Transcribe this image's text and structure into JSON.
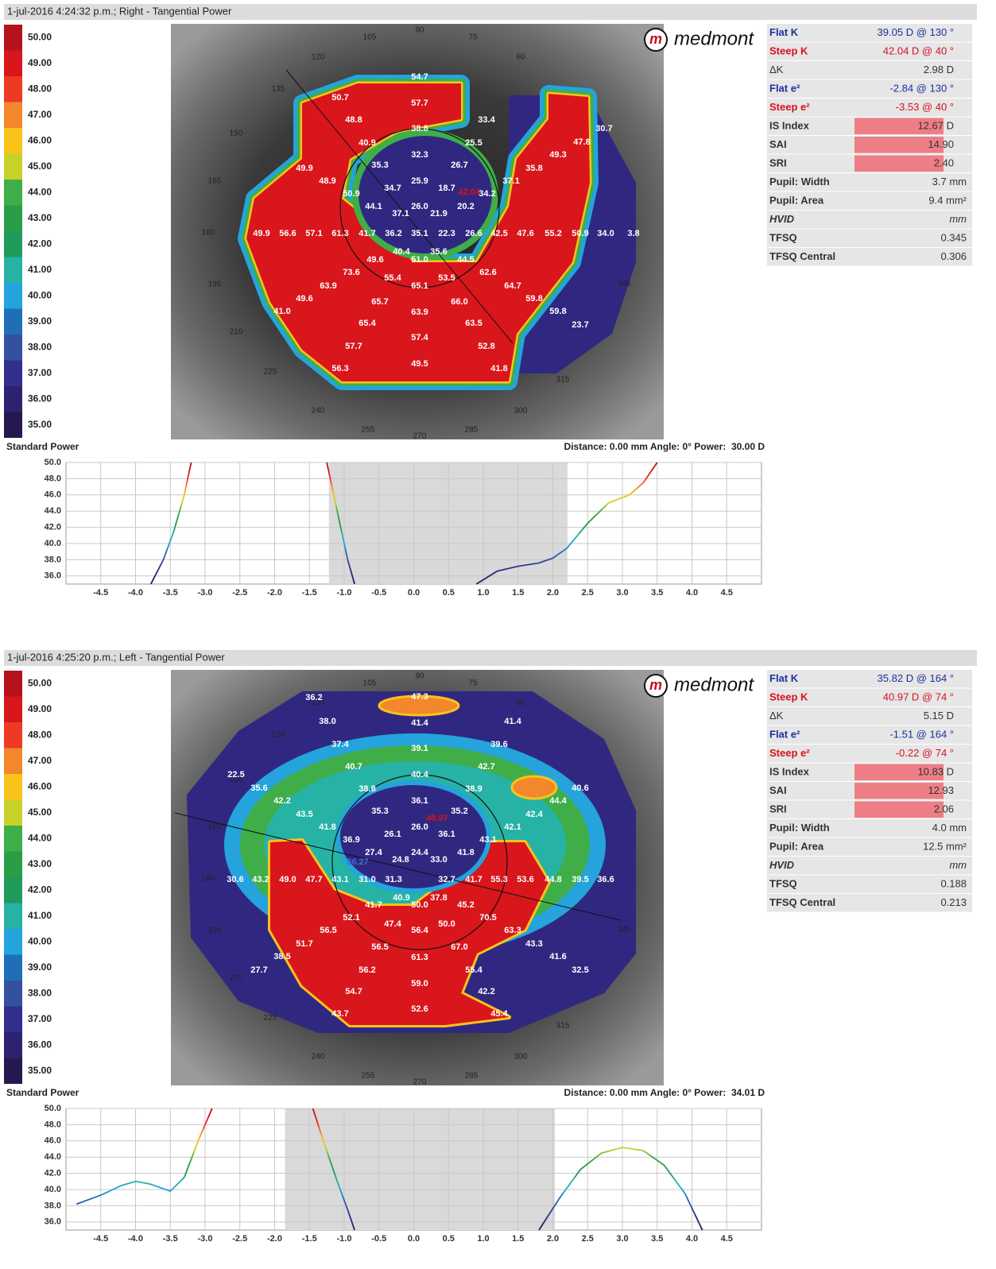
{
  "panels": [
    {
      "header": "1-jul-2016 4:24:32 p.m.; Right - Tangential Power",
      "scale_labels": [
        "50.00",
        "49.00",
        "48.00",
        "47.00",
        "46.00",
        "45.00",
        "44.00",
        "43.00",
        "42.00",
        "41.00",
        "40.00",
        "39.00",
        "38.00",
        "37.00",
        "36.00",
        "35.00"
      ],
      "logo": {
        "mark": "m",
        "text": "medmont"
      },
      "angle_labels": [
        "105",
        "90",
        "75",
        "120",
        "60",
        "135",
        "150",
        "165",
        "180",
        "195",
        "210",
        "225",
        "240",
        "255",
        "270",
        "285",
        "300",
        "315",
        "345"
      ],
      "map_values": [
        "54.7",
        "50.7",
        "57.7",
        "48.8",
        "33.4",
        "38.8",
        "30.7",
        "40.9",
        "25.5",
        "47.8",
        "49.3",
        "32.3",
        "35.3",
        "26.7",
        "35.8",
        "49.9",
        "48.9",
        "25.9",
        "37.1",
        "34.7",
        "18.7",
        "42.04",
        "34.2",
        "50.9",
        "44.1",
        "26.0",
        "20.2",
        "37.1",
        "21.9",
        "49.9",
        "56.6",
        "57.1",
        "61.3",
        "41.7",
        "36.2",
        "35.1",
        "22.3",
        "26.6",
        "42.5",
        "47.6",
        "55.2",
        "50.9",
        "34.0",
        "3.8",
        "40.4",
        "35.6",
        "49.6",
        "51.0",
        "44.5",
        "73.6",
        "62.6",
        "55.4",
        "53.5",
        "63.9",
        "65.1",
        "64.7",
        "49.6",
        "59.8",
        "65.7",
        "66.0",
        "41.0",
        "63.9",
        "59.8",
        "65.4",
        "63.5",
        "23.7",
        "57.4",
        "57.7",
        "52.8",
        "49.5",
        "56.3",
        "41.8"
      ],
      "stats": [
        {
          "label": "Flat K",
          "value": "39.05 D @ 130 °"
        },
        {
          "label": "Steep K",
          "value": "42.04 D @  40 °"
        },
        {
          "label": "ΔK",
          "value": "2.98 D"
        },
        {
          "label": "Flat e²",
          "value": "-2.84 @ 130 °"
        },
        {
          "label": "Steep e²",
          "value": "-3.53 @  40 °"
        },
        {
          "label": "IS Index",
          "value": "12.67 D"
        },
        {
          "label": "SAI",
          "value": "14.90"
        },
        {
          "label": "SRI",
          "value": "2.40"
        },
        {
          "label": "Pupil: Width",
          "value": "3.7 mm"
        },
        {
          "label": "Pupil: Area",
          "value": "9.4 mm²"
        },
        {
          "label": "HVID",
          "value": "mm"
        },
        {
          "label": "TFSQ",
          "value": "0.345"
        },
        {
          "label": "TFSQ Central",
          "value": "0.306"
        }
      ],
      "profile_title": "Standard Power",
      "profile_info": "Distance: 0.00 mm Angle: 0° Power:  30.00 D",
      "profile": {
        "xlim": [
          -5,
          5
        ],
        "ylim": [
          35,
          50
        ],
        "xticks": [
          -4.5,
          {
            "value": -4,
            "label": "-4.0"
          },
          -3.5,
          {
            "value": -3,
            "label": "-3.0"
          },
          -2.5,
          {
            "value": -2,
            "label": "-2.0"
          },
          -1.5,
          {
            "value": -1,
            "label": "-1.0"
          },
          -0.5,
          {
            "value": 0,
            "label": "0.0"
          },
          0.5,
          {
            "value": 1,
            "label": "1.0"
          },
          1.5,
          {
            "value": 2,
            "label": "2.0"
          },
          2.5,
          {
            "value": 3,
            "label": "3.0"
          },
          3.5,
          {
            "value": 4,
            "label": "4.0"
          },
          4.5
        ],
        "yticks": [
          {
            "value": 50,
            "label": "50.0"
          },
          {
            "value": 48,
            "label": "48.0"
          },
          {
            "value": 46,
            "label": "46.0"
          },
          {
            "value": 44,
            "label": "44.0"
          },
          {
            "value": 42,
            "label": "42.0"
          },
          {
            "value": 40,
            "label": "40.0"
          },
          {
            "value": 38,
            "label": "38.0"
          },
          {
            "value": 36,
            "label": "36.0"
          }
        ],
        "shade": [
          -1.22,
          2.21
        ],
        "x": [
          -3.78,
          -3.6,
          -3.45,
          -3.3,
          -3.2,
          null,
          -1.25,
          -1.15,
          -1.05,
          -0.95,
          -0.85,
          null,
          0.9,
          1.2,
          1.5,
          1.8,
          2.0,
          2.2,
          2.5,
          2.8,
          3.1,
          3.3,
          3.5
        ],
        "y": [
          35,
          38,
          41.5,
          46,
          50,
          null,
          50,
          46,
          42,
          38,
          35,
          null,
          35,
          36.6,
          37.2,
          37.6,
          38.2,
          39.4,
          42.5,
          45,
          46,
          47.5,
          50
        ]
      }
    },
    {
      "header": "1-jul-2016 4:25:20 p.m.; Left - Tangential Power",
      "scale_labels": [
        "50.00",
        "49.00",
        "48.00",
        "47.00",
        "46.00",
        "45.00",
        "44.00",
        "43.00",
        "42.00",
        "41.00",
        "40.00",
        "39.00",
        "38.00",
        "37.00",
        "36.00",
        "35.00"
      ],
      "logo": {
        "mark": "m",
        "text": "medmont"
      },
      "angle_labels": [
        "105",
        "90",
        "75",
        "120",
        "60",
        "135",
        "150",
        "165",
        "180",
        "195",
        "210",
        "225",
        "240",
        "255",
        "270",
        "285",
        "300",
        "315",
        "345"
      ],
      "map_values": [
        "36.2",
        "47.3",
        "38.0",
        "41.4",
        "41.4",
        "37.4",
        "39.6",
        "39.1",
        "40.7",
        "42.7",
        "40.4",
        "22.5",
        "35.6",
        "38.8",
        "38.9",
        "40.6",
        "42.2",
        "36.1",
        "44.4",
        "35.3",
        "35.2",
        "43.5",
        "42.4",
        "40.97",
        "41.8",
        "26.0",
        "42.1",
        "26.1",
        "36.1",
        "36.9",
        "43.1",
        "27.4",
        "24.4",
        "41.8",
        "24.8",
        "33.0",
        "36.27",
        "30.6",
        "43.2",
        "49.0",
        "47.7",
        "43.1",
        "31.0",
        "31.3",
        "32.7",
        "41.7",
        "55.3",
        "53.6",
        "44.8",
        "39.5",
        "36.6",
        "40.9",
        "37.8",
        "41.7",
        "50.0",
        "45.2",
        "52.1",
        "70.5",
        "47.4",
        "50.0",
        "56.5",
        "56.4",
        "63.3",
        "51.7",
        "43.3",
        "56.5",
        "67.0",
        "38.5",
        "41.6",
        "61.3",
        "27.7",
        "56.2",
        "55.4",
        "32.5",
        "59.0",
        "54.7",
        "42.2",
        "52.6",
        "43.7",
        "45.4"
      ],
      "stats": [
        {
          "label": "Flat K",
          "value": "35.82 D @ 164 °"
        },
        {
          "label": "Steep K",
          "value": "40.97 D @  74 °"
        },
        {
          "label": "ΔK",
          "value": "5.15 D"
        },
        {
          "label": "Flat e²",
          "value": "-1.51 @ 164 °"
        },
        {
          "label": "Steep e²",
          "value": "-0.22 @  74 °"
        },
        {
          "label": "IS Index",
          "value": "10.83 D"
        },
        {
          "label": "SAI",
          "value": "12.93"
        },
        {
          "label": "SRI",
          "value": "2.06"
        },
        {
          "label": "Pupil: Width",
          "value": "4.0 mm"
        },
        {
          "label": "Pupil: Area",
          "value": "12.5 mm²"
        },
        {
          "label": "HVID",
          "value": "mm"
        },
        {
          "label": "TFSQ",
          "value": "0.188"
        },
        {
          "label": "TFSQ Central",
          "value": "0.213"
        }
      ],
      "profile_title": "Standard Power",
      "profile_info": "Distance: 0.00 mm Angle: 0° Power:  34.01 D",
      "profile": {
        "xlim": [
          -5,
          5
        ],
        "ylim": [
          35,
          50
        ],
        "xticks": [
          -4.5,
          {
            "value": -4,
            "label": "-4.0"
          },
          -3.5,
          {
            "value": -3,
            "label": "-3.0"
          },
          -2.5,
          {
            "value": -2,
            "label": "-2.0"
          },
          -1.5,
          {
            "value": -1,
            "label": "-1.0"
          },
          -0.5,
          {
            "value": 0,
            "label": "0.0"
          },
          0.5,
          {
            "value": 1,
            "label": "1.0"
          },
          1.5,
          {
            "value": 2,
            "label": "2.0"
          },
          2.5,
          {
            "value": 3,
            "label": "3.0"
          },
          3.5,
          {
            "value": 4,
            "label": "4.0"
          },
          4.5
        ],
        "yticks": [
          {
            "value": 50,
            "label": "50.0"
          },
          {
            "value": 48,
            "label": "48.0"
          },
          {
            "value": 46,
            "label": "46.0"
          },
          {
            "value": 44,
            "label": "44.0"
          },
          {
            "value": 42,
            "label": "42.0"
          },
          {
            "value": 40,
            "label": "40.0"
          },
          {
            "value": 38,
            "label": "38.0"
          },
          {
            "value": 36,
            "label": "36.0"
          }
        ],
        "shade": [
          -1.85,
          2.03
        ],
        "x": [
          -4.85,
          -4.5,
          -4.2,
          -4.0,
          -3.8,
          -3.5,
          -3.3,
          -3.1,
          -2.9,
          null,
          -1.45,
          -1.3,
          -1.1,
          -0.95,
          -0.85,
          null,
          1.8,
          2.1,
          2.4,
          2.7,
          3.0,
          3.3,
          3.6,
          3.9,
          4.15
        ],
        "y": [
          38.2,
          39.3,
          40.5,
          41,
          40.7,
          39.8,
          41.5,
          46,
          50,
          null,
          50,
          46,
          41,
          37.5,
          35,
          null,
          35,
          39,
          42.5,
          44.5,
          45.2,
          44.8,
          43,
          39.5,
          35
        ]
      }
    }
  ]
}
